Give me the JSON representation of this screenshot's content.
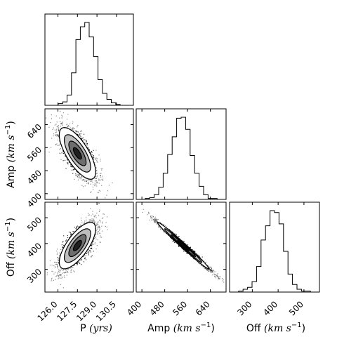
{
  "chart_data": {
    "type": "corner",
    "parameters": [
      {
        "name": "P",
        "units": "yrs",
        "ticks": [
          "126.0",
          "127.5",
          "129.0",
          "130.5"
        ],
        "range": [
          125.0,
          131.8
        ]
      },
      {
        "name": "Amp",
        "units": "km s−1",
        "ticks": [
          "400",
          "480",
          "560",
          "640"
        ],
        "range": [
          380,
          695
        ]
      },
      {
        "name": "Off",
        "units": "km s−1",
        "ticks": [
          "300",
          "400",
          "500"
        ],
        "range": [
          212,
          560
        ]
      }
    ],
    "labels": {
      "P": {
        "name": "P",
        "units": "(yrs)"
      },
      "Amp": {
        "name": "Amp",
        "units": "(km s",
        "exp": "−1",
        "close": ")"
      },
      "Off": {
        "name": "Off",
        "units": "(km s",
        "exp": "−1",
        "close": ")"
      }
    },
    "histograms": {
      "P": {
        "edges_start": 125.0,
        "bin_width": 0.34,
        "counts": [
          0,
          0,
          0,
          2,
          4,
          12,
          38,
          77,
          92,
          97,
          80,
          57,
          30,
          14,
          7,
          3,
          1,
          0,
          0,
          0
        ]
      },
      "Amp": {
        "edges_start": 380,
        "bin_width": 15.75,
        "counts": [
          0,
          0,
          1,
          2,
          5,
          13,
          28,
          48,
          67,
          87,
          88,
          75,
          47,
          28,
          14,
          5,
          1,
          1,
          0,
          0
        ]
      },
      "Off": {
        "edges_start": 212,
        "bin_width": 17.4,
        "counts": [
          0,
          0,
          1,
          3,
          5,
          11,
          27,
          55,
          70,
          86,
          84,
          72,
          43,
          19,
          8,
          3,
          1,
          1,
          0,
          0
        ]
      }
    },
    "joint": [
      {
        "x": "P",
        "y": "Amp",
        "mean": [
          127.5,
          540
        ],
        "sd": [
          0.7,
          45
        ],
        "corr": -0.72
      },
      {
        "x": "P",
        "y": "Off",
        "mean": [
          127.5,
          392
        ],
        "sd": [
          0.7,
          45
        ],
        "corr": 0.72
      },
      {
        "x": "Amp",
        "y": "Off",
        "mean": [
          545,
          392
        ],
        "sd": [
          45,
          45
        ],
        "corr": -0.99
      }
    ],
    "grid": false
  }
}
